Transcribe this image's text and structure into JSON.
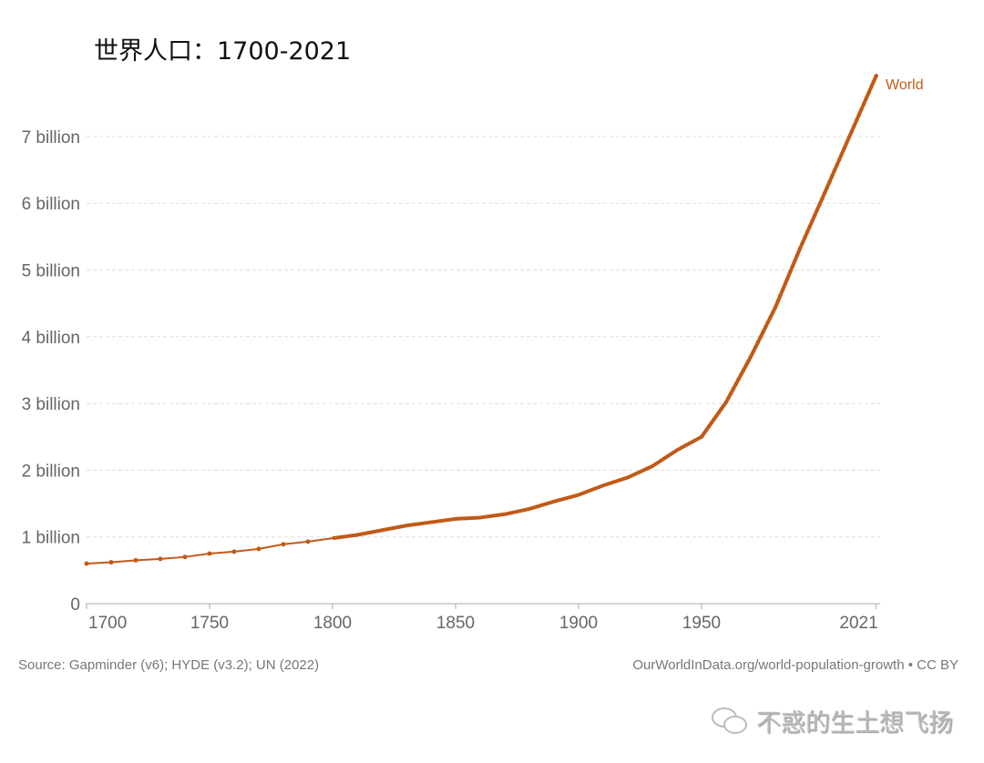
{
  "chart_data": {
    "type": "line",
    "title": "世界人口：1700-2021",
    "xlabel": "",
    "ylabel": "",
    "xlim": [
      1700,
      2021
    ],
    "ylim": [
      0,
      7.9
    ],
    "grid": true,
    "x_ticks": [
      "1700",
      "1750",
      "1800",
      "1850",
      "1900",
      "1950",
      "2021"
    ],
    "y_ticks": [
      "0",
      "1 billion",
      "2 billion",
      "3 billion",
      "4 billion",
      "5 billion",
      "6 billion",
      "7 billion"
    ],
    "series": [
      {
        "name": "World",
        "color": "#c15a17",
        "x": [
          1700,
          1710,
          1720,
          1730,
          1740,
          1750,
          1760,
          1770,
          1780,
          1790,
          1800,
          1810,
          1820,
          1830,
          1840,
          1850,
          1860,
          1870,
          1880,
          1890,
          1900,
          1910,
          1920,
          1930,
          1940,
          1950,
          1960,
          1970,
          1980,
          1990,
          2000,
          2010,
          2021
        ],
        "values": [
          0.6,
          0.62,
          0.65,
          0.67,
          0.7,
          0.75,
          0.78,
          0.82,
          0.89,
          0.93,
          0.98,
          1.03,
          1.1,
          1.17,
          1.22,
          1.27,
          1.29,
          1.34,
          1.42,
          1.53,
          1.63,
          1.77,
          1.89,
          2.06,
          2.3,
          2.5,
          3.02,
          3.7,
          4.44,
          5.32,
          6.15,
          6.99,
          7.91
        ]
      }
    ],
    "source": "Source: Gapminder (v6); HYDE (v3.2); UN (2022)",
    "credit": "OurWorldInData.org/world-population-growth • CC BY"
  },
  "watermark": "不惑的生土想飞扬"
}
